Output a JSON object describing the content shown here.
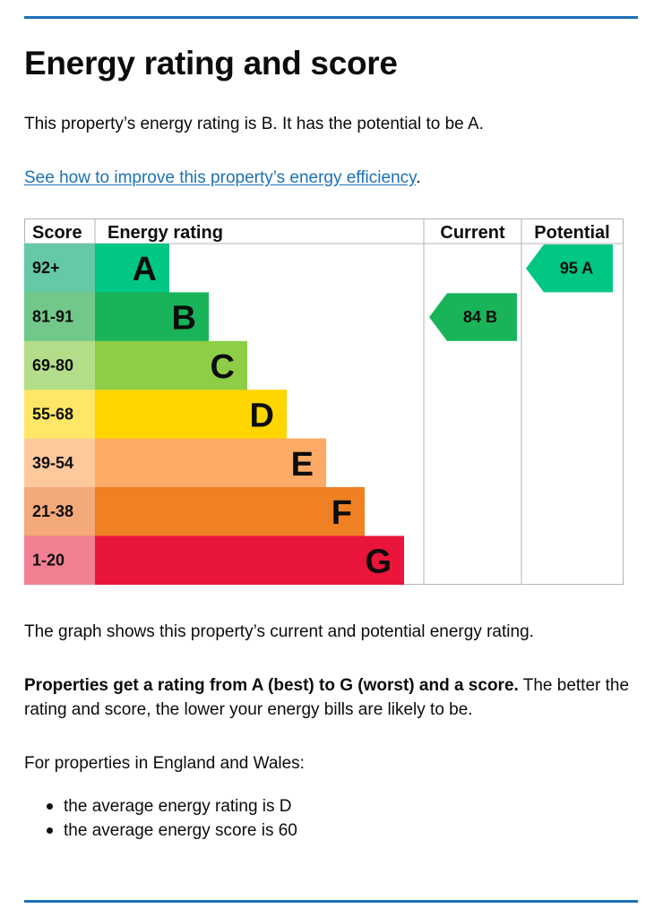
{
  "page": {
    "title": "Energy rating and score",
    "intro": "This property’s energy rating is B. It has the potential to be A.",
    "improve_link": "See how to improve this property’s energy efficiency",
    "improve_suffix": ".",
    "graph_note": "The graph shows this property’s current and potential energy rating.",
    "ratings_bold": "Properties get a rating from A (best) to G (worst) and a score.",
    "ratings_rest": " The better the rating and score, the lower your energy bills are likely to be.",
    "regions_intro": "For properties in England and Wales:",
    "averages": [
      "the average energy rating is D",
      "the average energy score is 60"
    ]
  },
  "chart_data": {
    "type": "table",
    "headers": {
      "score": "Score",
      "rating": "Energy rating",
      "current": "Current",
      "potential": "Potential"
    },
    "bands": [
      {
        "range": "92+",
        "letter": "A",
        "color": "#00c781",
        "score_bg": "#64c9a4"
      },
      {
        "range": "81-91",
        "letter": "B",
        "color": "#19b459",
        "score_bg": "#72c88b"
      },
      {
        "range": "69-80",
        "letter": "C",
        "color": "#8dce46",
        "score_bg": "#b4dd89"
      },
      {
        "range": "55-68",
        "letter": "D",
        "color": "#ffd500",
        "score_bg": "#ffe666"
      },
      {
        "range": "39-54",
        "letter": "E",
        "color": "#fcaa65",
        "score_bg": "#fdc89c"
      },
      {
        "range": "21-38",
        "letter": "F",
        "color": "#ef8023",
        "score_bg": "#f4a97a"
      },
      {
        "range": "1-20",
        "letter": "G",
        "color": "#e9153b",
        "score_bg": "#f28092"
      }
    ],
    "current": {
      "score": "84",
      "letter": "B",
      "band_index": 1,
      "color": "#19b459"
    },
    "potential": {
      "score": "95",
      "letter": "A",
      "band_index": 0,
      "color": "#00c781"
    }
  }
}
